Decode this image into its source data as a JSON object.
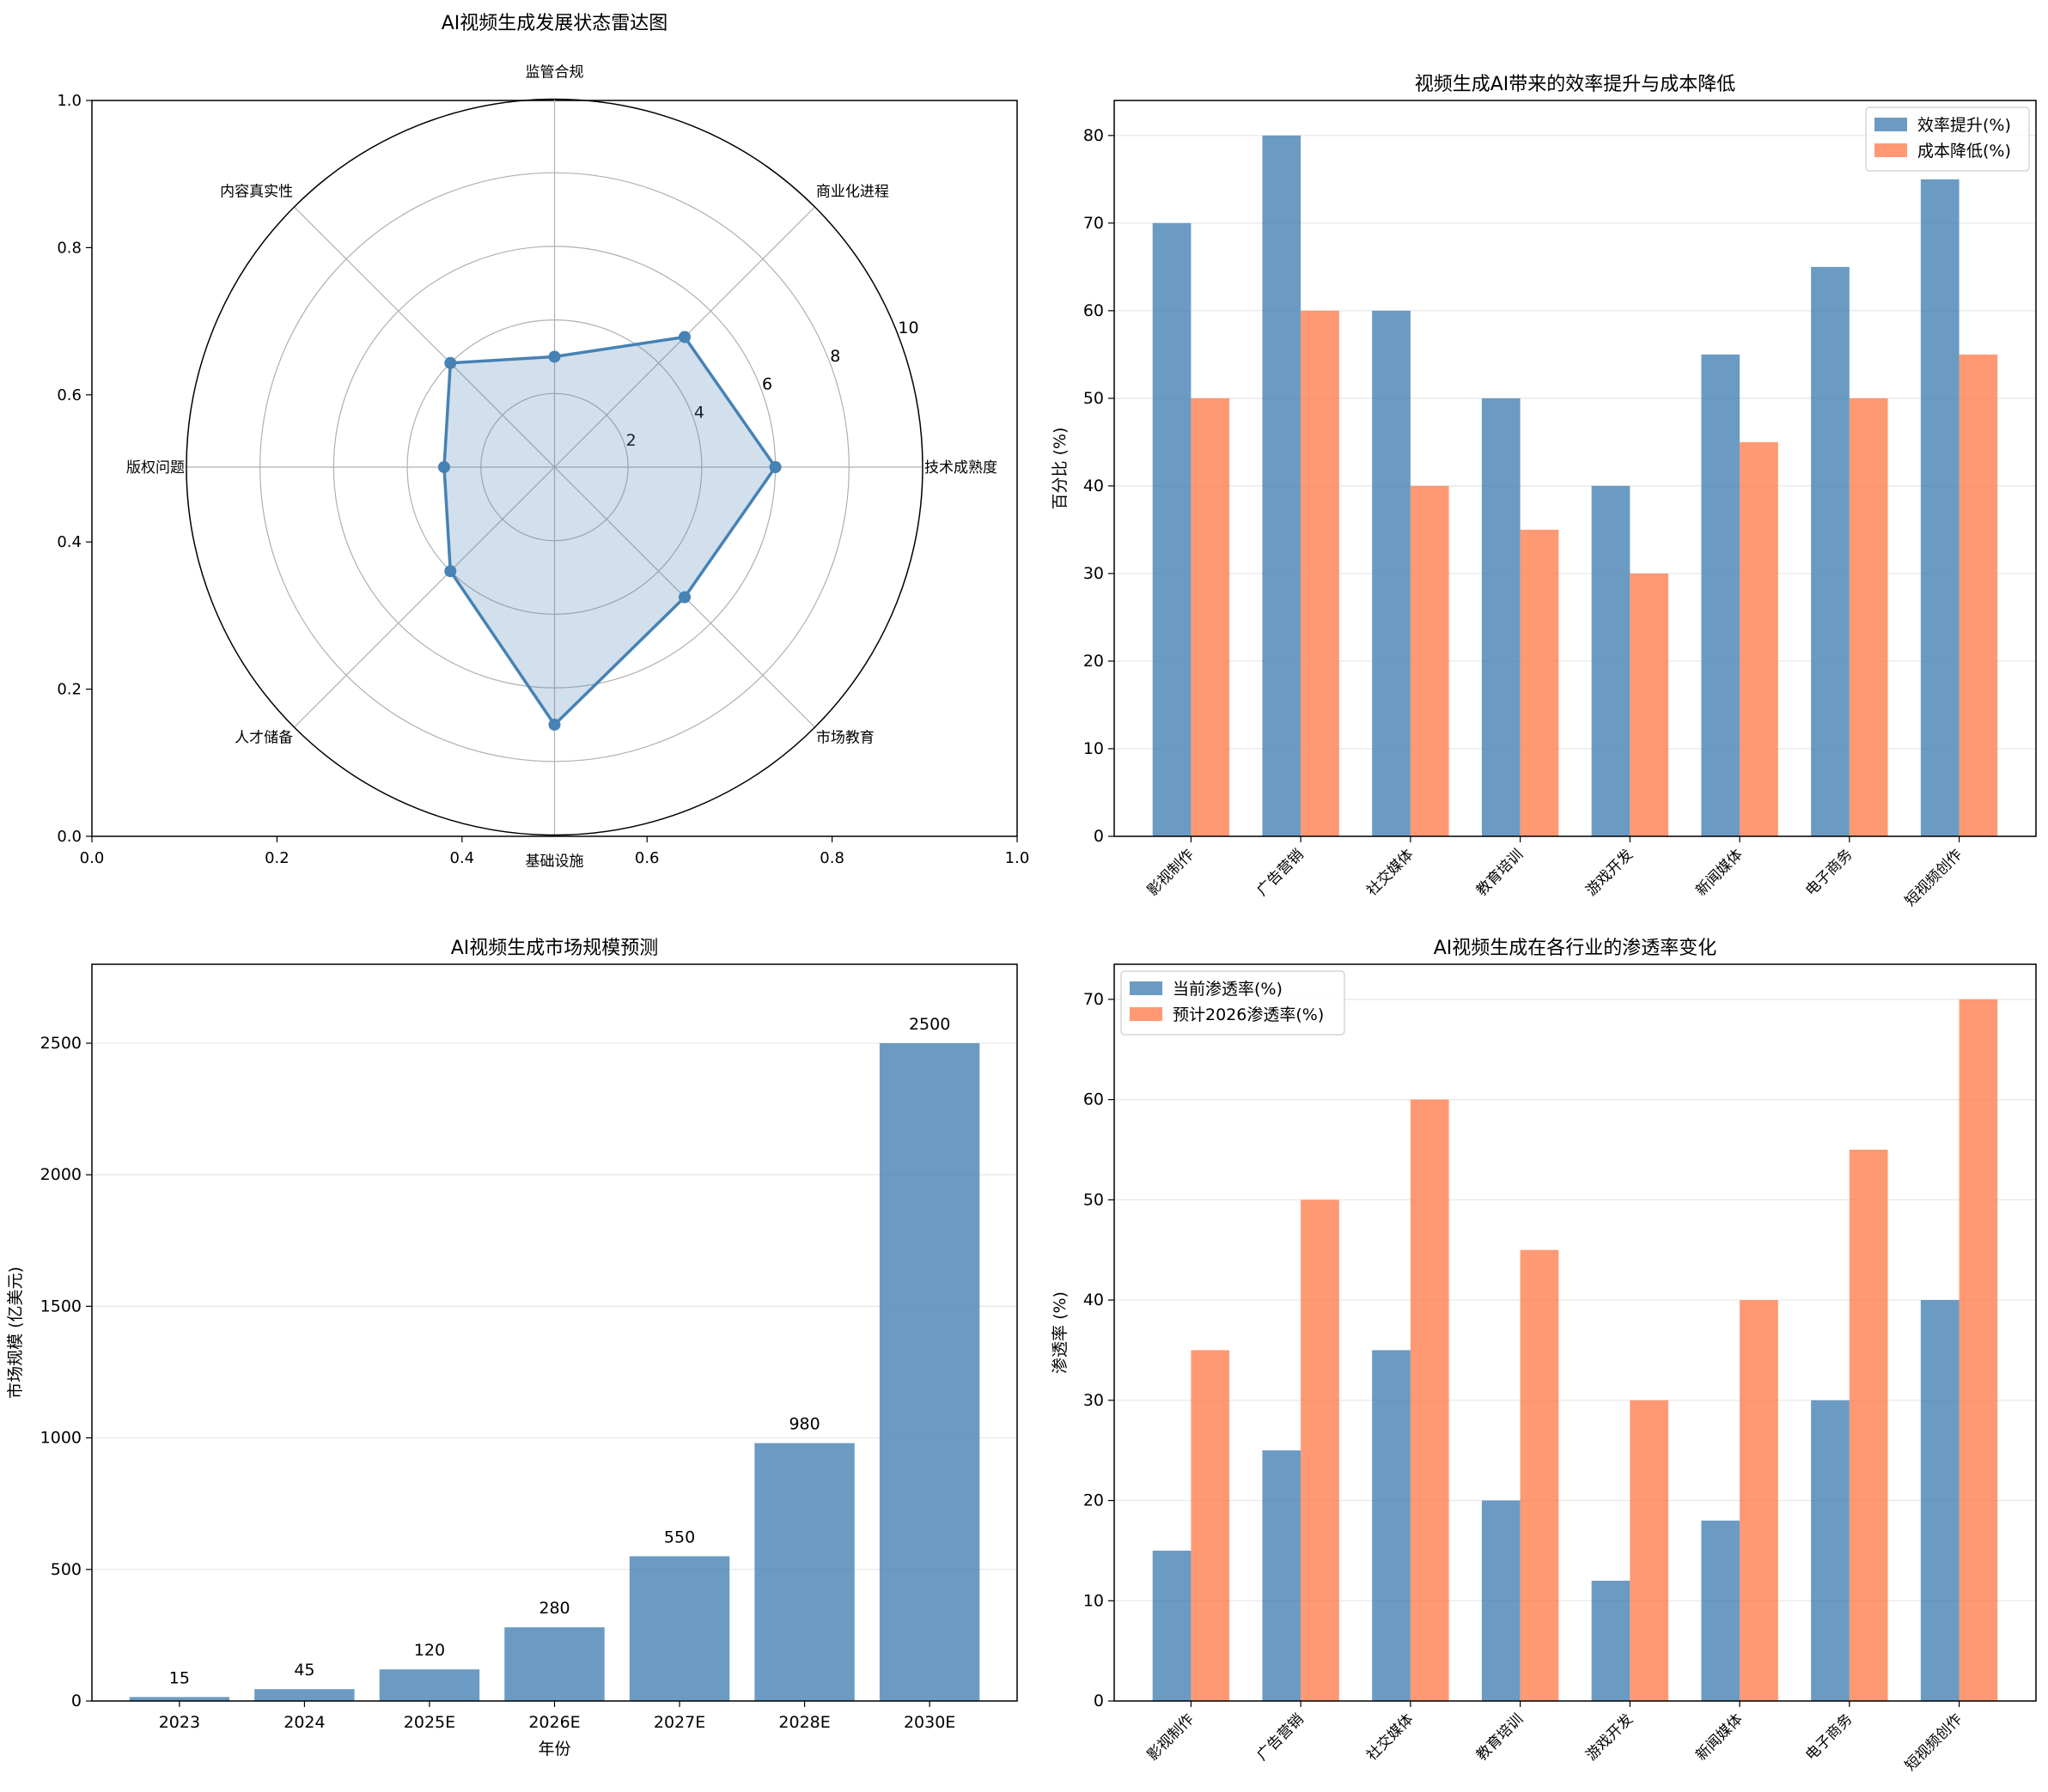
{
  "chart_data": [
    {
      "type": "radar",
      "title": "AI视频生成发展状态雷达图",
      "categories": [
        "技术成熟度",
        "商业化进程",
        "监管合规",
        "内容真实性",
        "版权问题",
        "人才储备",
        "基础设施",
        "市场教育"
      ],
      "values": [
        6,
        5,
        3,
        4,
        3,
        4,
        7,
        5
      ],
      "rlim": [
        0,
        10
      ],
      "rticks": [
        "2",
        "4",
        "6",
        "8",
        "10"
      ],
      "xlim": [
        0,
        1
      ],
      "ylim": [
        0,
        1
      ],
      "xticks": [
        "0.0",
        "0.2",
        "0.4",
        "0.6",
        "0.8",
        "1.0"
      ],
      "yticks": [
        "0.0",
        "0.2",
        "0.4",
        "0.6",
        "0.8",
        "1.0"
      ],
      "color": "#4682b4"
    },
    {
      "type": "bar",
      "title": "视频生成AI带来的效率提升与成本降低",
      "categories": [
        "影视制作",
        "广告营销",
        "社交媒体",
        "教育培训",
        "游戏开发",
        "新闻媒体",
        "电子商务",
        "短视频创作"
      ],
      "series": [
        {
          "name": "效率提升(%)",
          "values": [
            70,
            80,
            60,
            50,
            40,
            55,
            65,
            75
          ],
          "color": "#4682b4"
        },
        {
          "name": "成本降低(%)",
          "values": [
            50,
            60,
            40,
            35,
            30,
            45,
            50,
            55
          ],
          "color": "#ff7f50"
        }
      ],
      "xlabel": "",
      "ylabel": "百分比 (%)",
      "ylim": [
        0,
        84
      ],
      "yticks": [
        0,
        10,
        20,
        30,
        40,
        50,
        60,
        70,
        80
      ],
      "legend": "top-right"
    },
    {
      "type": "bar",
      "title": "AI视频生成市场规模预测",
      "categories": [
        "2023",
        "2024",
        "2025E",
        "2026E",
        "2027E",
        "2028E",
        "2030E"
      ],
      "values": [
        15,
        45,
        120,
        280,
        550,
        980,
        2500
      ],
      "labels": [
        "15",
        "45",
        "120",
        "280",
        "550",
        "980",
        "2500"
      ],
      "xlabel": "年份",
      "ylabel": "市场规模 (亿美元)",
      "ylim": [
        0,
        2800
      ],
      "yticks": [
        0,
        500,
        1000,
        1500,
        2000,
        2500
      ],
      "color": "#4682b4"
    },
    {
      "type": "bar",
      "title": "AI视频生成在各行业的渗透率变化",
      "categories": [
        "影视制作",
        "广告营销",
        "社交媒体",
        "教育培训",
        "游戏开发",
        "新闻媒体",
        "电子商务",
        "短视频创作"
      ],
      "series": [
        {
          "name": "当前渗透率(%)",
          "values": [
            15,
            25,
            35,
            20,
            12,
            18,
            30,
            40
          ],
          "color": "#4682b4"
        },
        {
          "name": "预计2026渗透率(%)",
          "values": [
            35,
            50,
            60,
            45,
            30,
            40,
            55,
            70
          ],
          "color": "#ff7f50"
        }
      ],
      "xlabel": "",
      "ylabel": "渗透率 (%)",
      "ylim": [
        0,
        73.5
      ],
      "yticks": [
        0,
        10,
        20,
        30,
        40,
        50,
        60,
        70
      ],
      "legend": "top-left"
    }
  ]
}
